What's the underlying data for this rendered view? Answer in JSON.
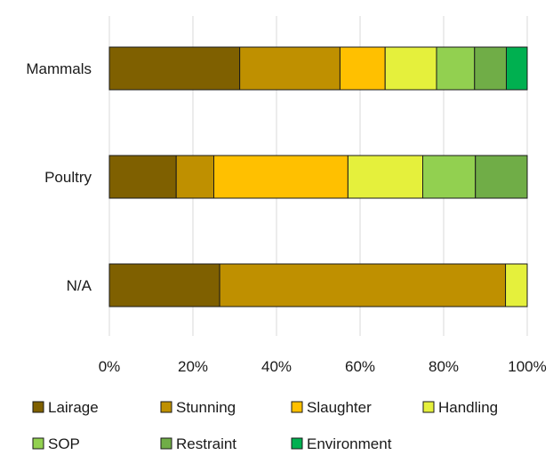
{
  "chart_data": {
    "type": "bar",
    "orientation": "horizontal",
    "stacked": true,
    "normalized": true,
    "categories": [
      "Mammals",
      "Poultry",
      "N/A"
    ],
    "series": [
      {
        "name": "Lairage",
        "color": "#7f6000",
        "values": [
          31.2,
          16.0,
          26.4
        ]
      },
      {
        "name": "Stunning",
        "color": "#bf9000",
        "values": [
          24.0,
          9.0,
          68.4
        ]
      },
      {
        "name": "Slaughter",
        "color": "#ffc000",
        "values": [
          10.8,
          32.1,
          0
        ]
      },
      {
        "name": "Handling",
        "color": "#e5f03c",
        "values": [
          12.3,
          17.9,
          5.2
        ]
      },
      {
        "name": "SOP",
        "color": "#92d050",
        "values": [
          9.1,
          12.6,
          0
        ]
      },
      {
        "name": "Restraint",
        "color": "#70ad47",
        "values": [
          7.6,
          12.4,
          0
        ]
      },
      {
        "name": "Environment",
        "color": "#00b050",
        "values": [
          5.0,
          0,
          0
        ]
      }
    ],
    "x_ticks": [
      "0%",
      "20%",
      "40%",
      "60%",
      "80%",
      "100%"
    ],
    "xlim": [
      0,
      100
    ],
    "grid": "vertical",
    "legend_position": "bottom"
  }
}
